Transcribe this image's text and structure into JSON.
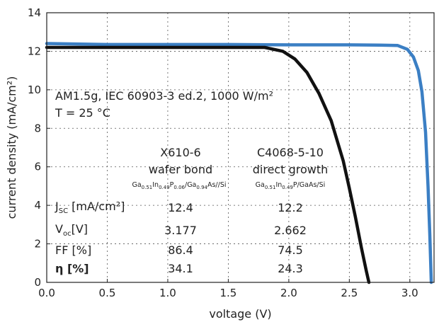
{
  "chart_data": {
    "type": "line",
    "xlabel": "voltage (V)",
    "ylabel": "current density (mA/cm²)",
    "xlim": [
      0,
      3.2
    ],
    "ylim": [
      0,
      14
    ],
    "xticks": [
      "0.0",
      "0.5",
      "1.0",
      "1.5",
      "2.0",
      "2.5",
      "3.0"
    ],
    "yticks": [
      "0",
      "2",
      "4",
      "6",
      "8",
      "10",
      "12",
      "14"
    ],
    "grid": true,
    "series": [
      {
        "name": "X610-6",
        "color": "#3b7fc4",
        "x": [
          0,
          0.5,
          1.0,
          1.5,
          2.0,
          2.5,
          2.75,
          2.9,
          2.98,
          3.03,
          3.07,
          3.1,
          3.13,
          3.15,
          3.165,
          3.177
        ],
        "y": [
          12.4,
          12.35,
          12.35,
          12.35,
          12.33,
          12.33,
          12.32,
          12.3,
          12.1,
          11.7,
          11.0,
          9.9,
          7.8,
          5.0,
          2.5,
          0
        ]
      },
      {
        "name": "C4068-5-10",
        "color": "#111111",
        "x": [
          0,
          0.5,
          1.0,
          1.5,
          1.8,
          1.95,
          2.05,
          2.15,
          2.25,
          2.35,
          2.45,
          2.5,
          2.55,
          2.6,
          2.64,
          2.662
        ],
        "y": [
          12.2,
          12.2,
          12.2,
          12.2,
          12.2,
          12.0,
          11.6,
          10.9,
          9.8,
          8.4,
          6.3,
          4.9,
          3.4,
          1.8,
          0.6,
          0
        ]
      }
    ]
  },
  "conditions": {
    "line1": "AM1.5g, IEC 60903-3 ed.2, 1000 W/m²",
    "line2": "T = 25 °C"
  },
  "table": {
    "col1": {
      "id": "X610-6",
      "desc": "wafer bond",
      "mat": {
        "p1": "Ga",
        "s1": "0.51",
        "p2": "In",
        "s2": "0.49",
        "p3": "P",
        "s3": "0.06",
        "p4": "/Ga",
        "s4": "0.94",
        "p5": "As//Si"
      }
    },
    "col2": {
      "id": "C4068-5-10",
      "desc": "direct growth",
      "mat": {
        "p1": "Ga",
        "s1": "0.51",
        "p2": "In",
        "s2": "0.49",
        "p3": "P/GaAs/Si"
      }
    },
    "rows": {
      "jsc": {
        "sym": "J",
        "sub": "SC",
        "unit": " [mA/cm²]",
        "v1": "12.4",
        "v2": "12.2"
      },
      "voc": {
        "sym": "V",
        "sub": "oc",
        "unit": "[V]",
        "v1": "3.177",
        "v2": "2.662"
      },
      "ff": {
        "label": "FF [%]",
        "v1": "86.4",
        "v2": "74.5"
      },
      "eta": {
        "label": "η [%]",
        "v1": "34.1",
        "v2": "24.3"
      }
    }
  }
}
